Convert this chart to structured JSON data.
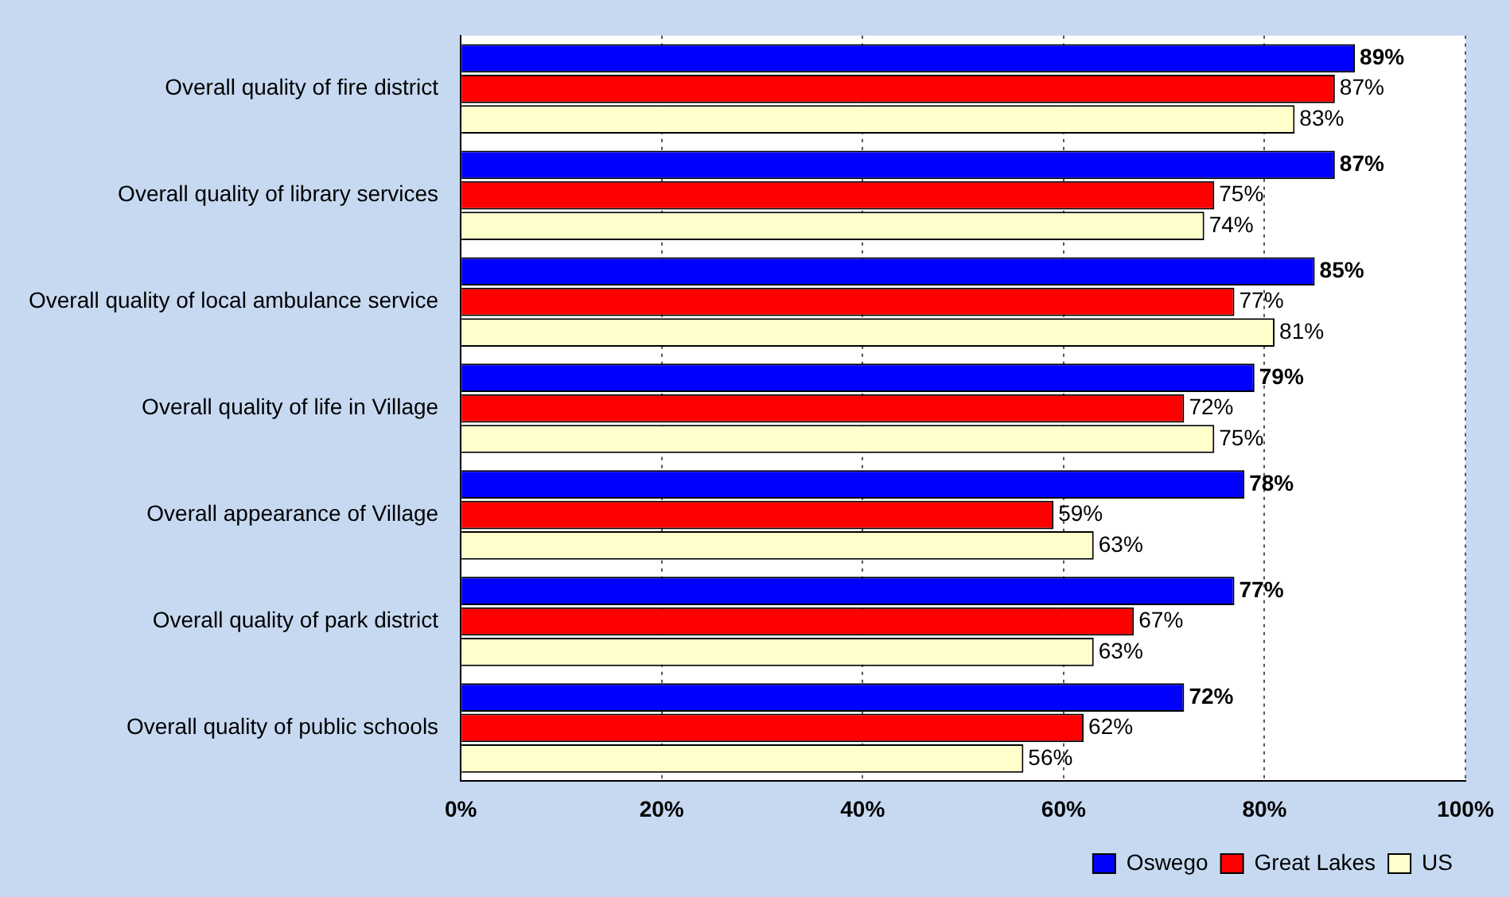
{
  "chart_data": {
    "type": "bar",
    "orientation": "horizontal",
    "categories": [
      "Overall quality of fire district",
      "Overall quality of library services",
      "Overall quality of local ambulance service",
      "Overall quality of life in Village",
      "Overall appearance of Village",
      "Overall quality of park district",
      "Overall quality of public schools"
    ],
    "series": [
      {
        "name": "Oswego",
        "color": "#0000ff",
        "values": [
          89,
          87,
          85,
          79,
          78,
          77,
          72
        ],
        "value_labels": [
          "89%",
          "87%",
          "85%",
          "79%",
          "78%",
          "77%",
          "72%"
        ]
      },
      {
        "name": "Great Lakes",
        "color": "#ff0000",
        "values": [
          87,
          75,
          77,
          72,
          59,
          67,
          62
        ],
        "value_labels": [
          "87%",
          "75%",
          "77%",
          "72%",
          "59%",
          "67%",
          "62%"
        ]
      },
      {
        "name": "US",
        "color": "#ffffcc",
        "values": [
          83,
          74,
          81,
          75,
          63,
          63,
          56
        ],
        "value_labels": [
          "83%",
          "74%",
          "81%",
          "75%",
          "63%",
          "63%",
          "56%"
        ]
      }
    ],
    "xlim": [
      0,
      100
    ],
    "xticks": [
      {
        "value": 0,
        "label": "0%"
      },
      {
        "value": 20,
        "label": "20%"
      },
      {
        "value": 40,
        "label": "40%"
      },
      {
        "value": 60,
        "label": "60%"
      },
      {
        "value": 80,
        "label": "80%"
      },
      {
        "value": 100,
        "label": "100%"
      }
    ],
    "grid": "x",
    "legend": "bottom right"
  }
}
